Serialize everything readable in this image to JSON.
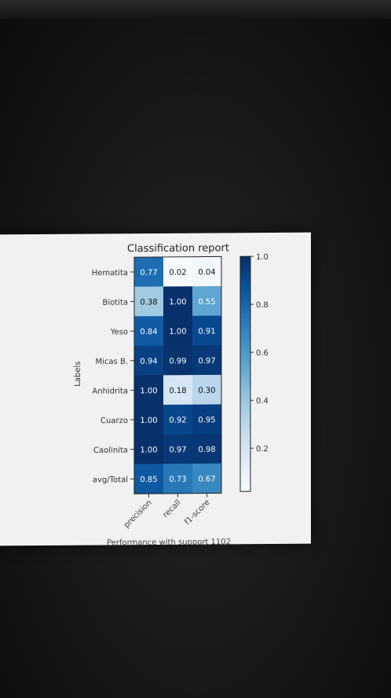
{
  "chart_data": {
    "type": "heatmap",
    "title": "Classification report",
    "xlabel": "Performance with support 1102",
    "ylabel": "Labels",
    "x_categories": [
      "precision",
      "recall",
      "f1-score"
    ],
    "y_categories": [
      "Hematita",
      "Biotita",
      "Yeso",
      "Micas B.",
      "Anhidrita",
      "Cuarzo",
      "Caolinita",
      "avg/Total"
    ],
    "values": [
      [
        0.77,
        0.02,
        0.04
      ],
      [
        0.38,
        1.0,
        0.55
      ],
      [
        0.84,
        1.0,
        0.91
      ],
      [
        0.94,
        0.99,
        0.97
      ],
      [
        1.0,
        0.18,
        0.3
      ],
      [
        1.0,
        0.92,
        0.95
      ],
      [
        1.0,
        0.97,
        0.98
      ],
      [
        0.85,
        0.73,
        0.67
      ]
    ],
    "value_labels": [
      [
        "0.77",
        "0.02",
        "0.04"
      ],
      [
        "0.38",
        "1.00",
        "0.55"
      ],
      [
        "0.84",
        "1.00",
        "0.91"
      ],
      [
        "0.94",
        "0.99",
        "0.97"
      ],
      [
        "1.00",
        "0.18",
        "0.30"
      ],
      [
        "1.00",
        "0.92",
        "0.95"
      ],
      [
        "1.00",
        "0.97",
        "0.98"
      ],
      [
        "0.85",
        "0.73",
        "0.67"
      ]
    ],
    "colormap": "Blues",
    "colorbar": {
      "range": [
        0.02,
        1.0
      ],
      "ticks": [
        1.0,
        0.8,
        0.6,
        0.4,
        0.2
      ],
      "tick_labels": [
        "1.0",
        "0.8",
        "0.6",
        "0.4",
        "0.2"
      ]
    }
  }
}
